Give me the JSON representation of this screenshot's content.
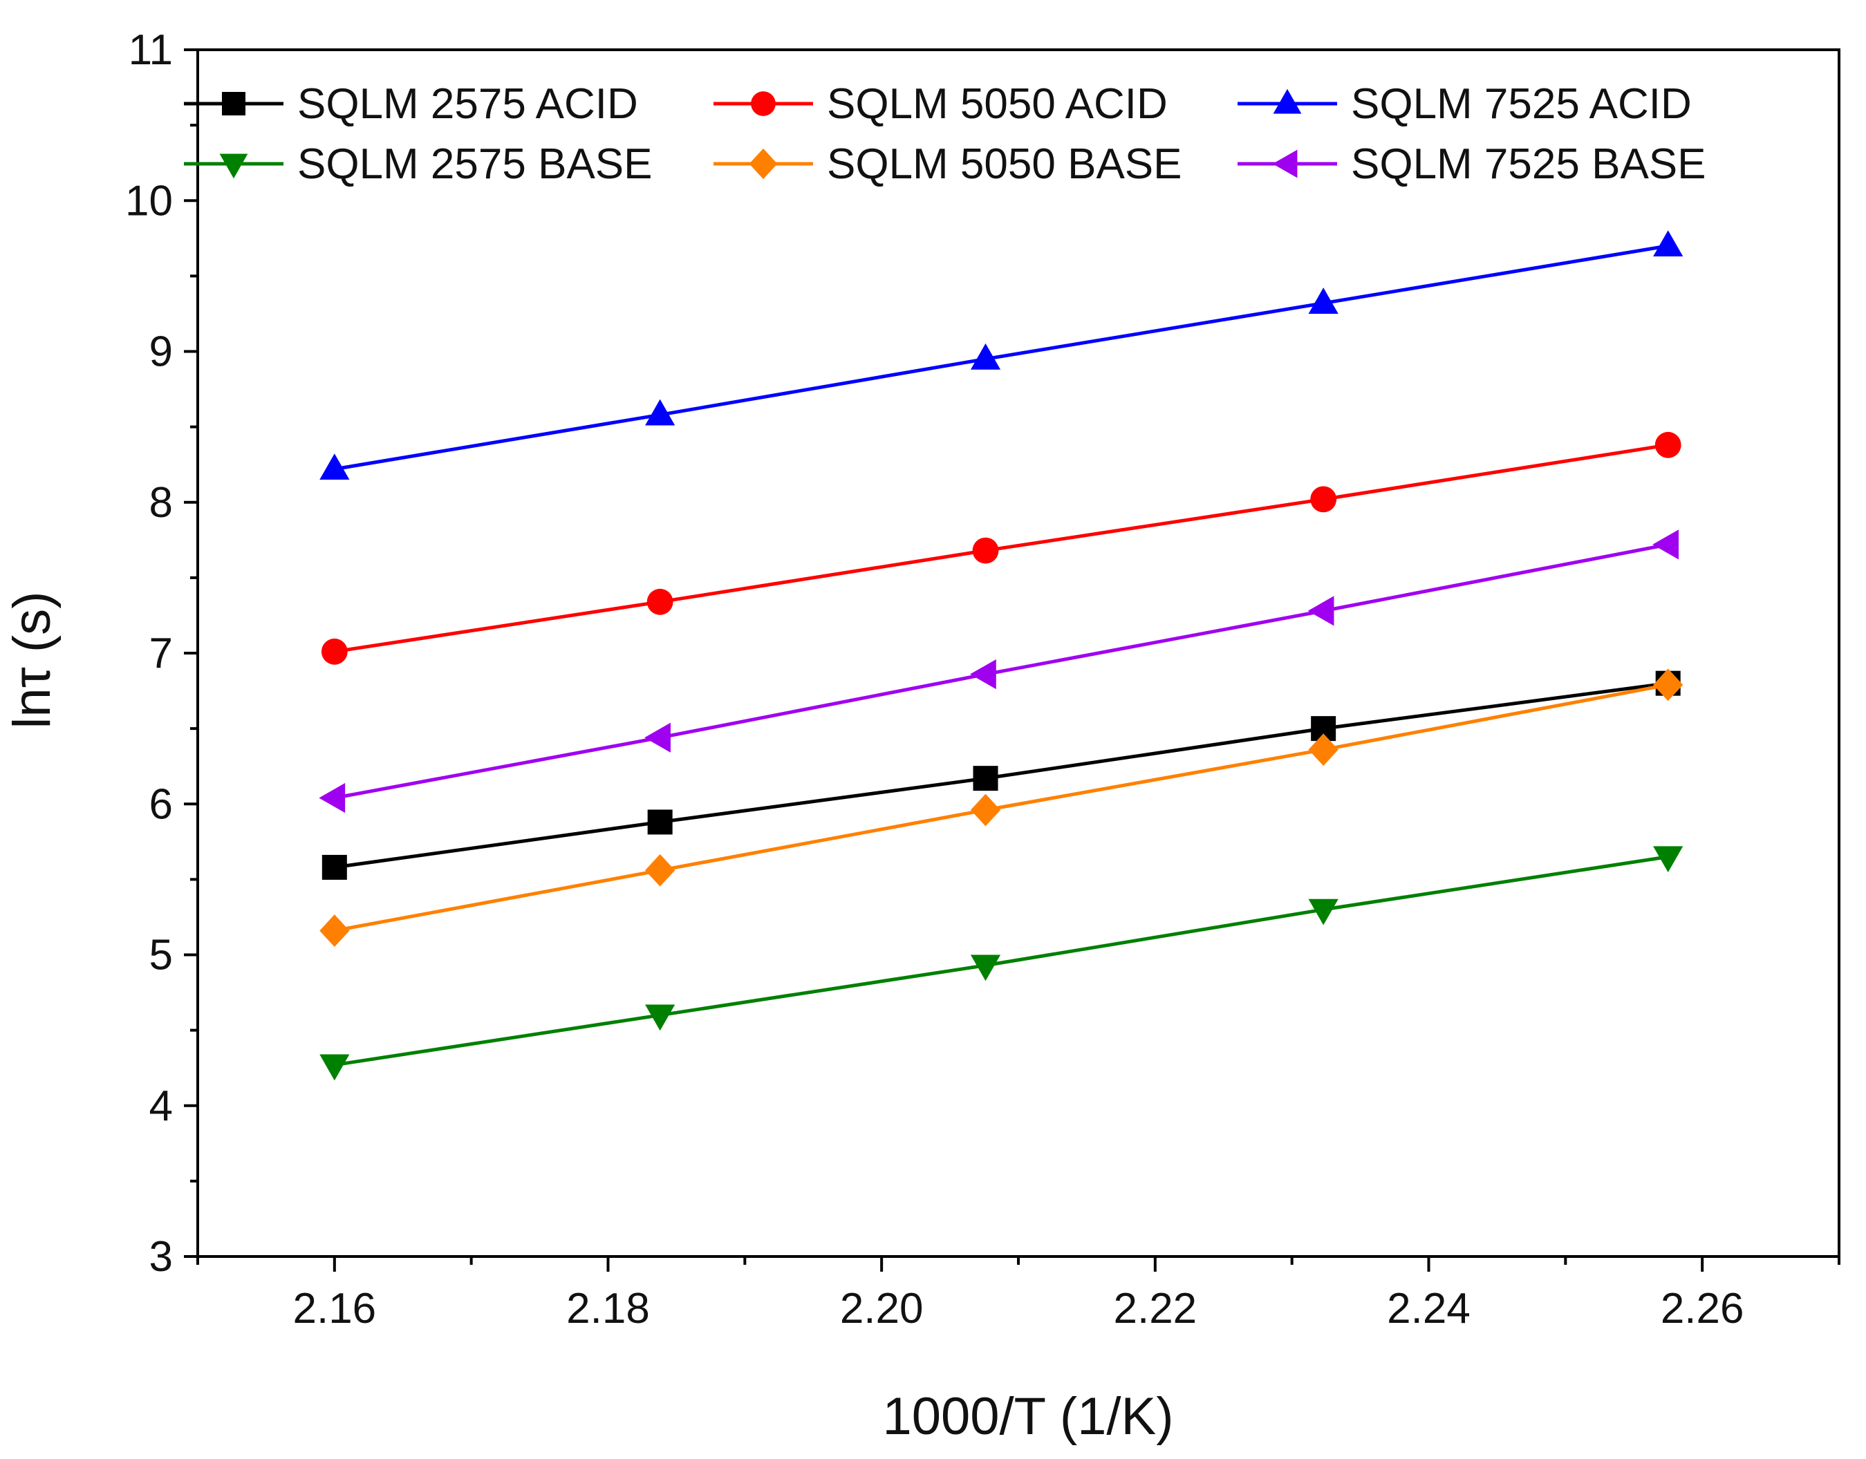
{
  "chart_data": {
    "type": "line",
    "title": "",
    "xlabel": "1000/T (1/K)",
    "ylabel": "lnτ (s)",
    "xlim": [
      2.15,
      2.27
    ],
    "ylim": [
      3,
      11
    ],
    "x_ticks": [
      "2.16",
      "2.18",
      "2.20",
      "2.22",
      "2.24",
      "2.26"
    ],
    "y_ticks": [
      "3",
      "4",
      "5",
      "6",
      "7",
      "8",
      "9",
      "10",
      "11"
    ],
    "grid": false,
    "legend_position": "top",
    "x": [
      2.16,
      2.1838,
      2.2076,
      2.2323,
      2.2575
    ],
    "series": [
      {
        "name": "SQLM 2575 ACID",
        "color": "#000000",
        "marker": "square",
        "values": [
          5.58,
          5.88,
          6.17,
          6.5,
          6.8
        ]
      },
      {
        "name": "SQLM 5050 ACID",
        "color": "#ff0000",
        "marker": "circle",
        "values": [
          7.01,
          7.34,
          7.68,
          8.02,
          8.38
        ]
      },
      {
        "name": "SQLM 7525 ACID",
        "color": "#0000ff",
        "marker": "triangle-up",
        "values": [
          8.22,
          8.58,
          8.95,
          9.32,
          9.7
        ]
      },
      {
        "name": "SQLM 2575 BASE",
        "color": "#008000",
        "marker": "triangle-down",
        "values": [
          4.27,
          4.6,
          4.93,
          5.3,
          5.65
        ]
      },
      {
        "name": "SQLM 5050 BASE",
        "color": "#ff8000",
        "marker": "diamond",
        "values": [
          5.16,
          5.56,
          5.96,
          6.36,
          6.79
        ]
      },
      {
        "name": "SQLM 7525 BASE",
        "color": "#a000f0",
        "marker": "triangle-left",
        "values": [
          6.04,
          6.44,
          6.86,
          7.28,
          7.72
        ]
      }
    ]
  }
}
